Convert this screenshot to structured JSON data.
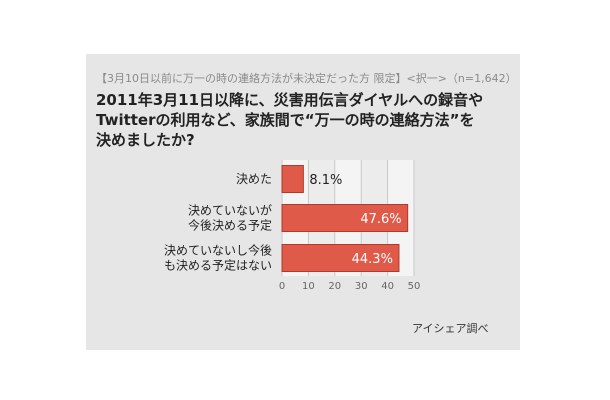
{
  "subtitle": "【3月10日以前に万一の時の連絡方法が未決定だった方 限定】<択一>（n=1,642）",
  "title_lines": [
    "2011年3月11日以降に、災害用伝言ダイヤルへの録音や",
    "Twitterの利用など、家族間で“万一の時の連絡方法”を",
    "決めましたか?"
  ],
  "source": "アイシェア調べ",
  "colors": {
    "bar": "#e05a4a",
    "bar_stroke": "#b03a2c",
    "grid": "#c9c9c9",
    "panel": "#e6e6e6"
  },
  "chart_data": {
    "type": "bar",
    "orientation": "horizontal",
    "categories": [
      [
        "決めた"
      ],
      [
        "決めていないが",
        "今後決める予定"
      ],
      [
        "決めていないし今後",
        "も決める予定はない"
      ]
    ],
    "values": [
      8.1,
      47.6,
      44.3
    ],
    "value_labels": [
      "8.1%",
      "47.6%",
      "44.3%"
    ],
    "xlim": [
      0,
      50
    ],
    "xticks": [
      "0",
      "10",
      "20",
      "30",
      "40",
      "50"
    ],
    "grid": true
  }
}
